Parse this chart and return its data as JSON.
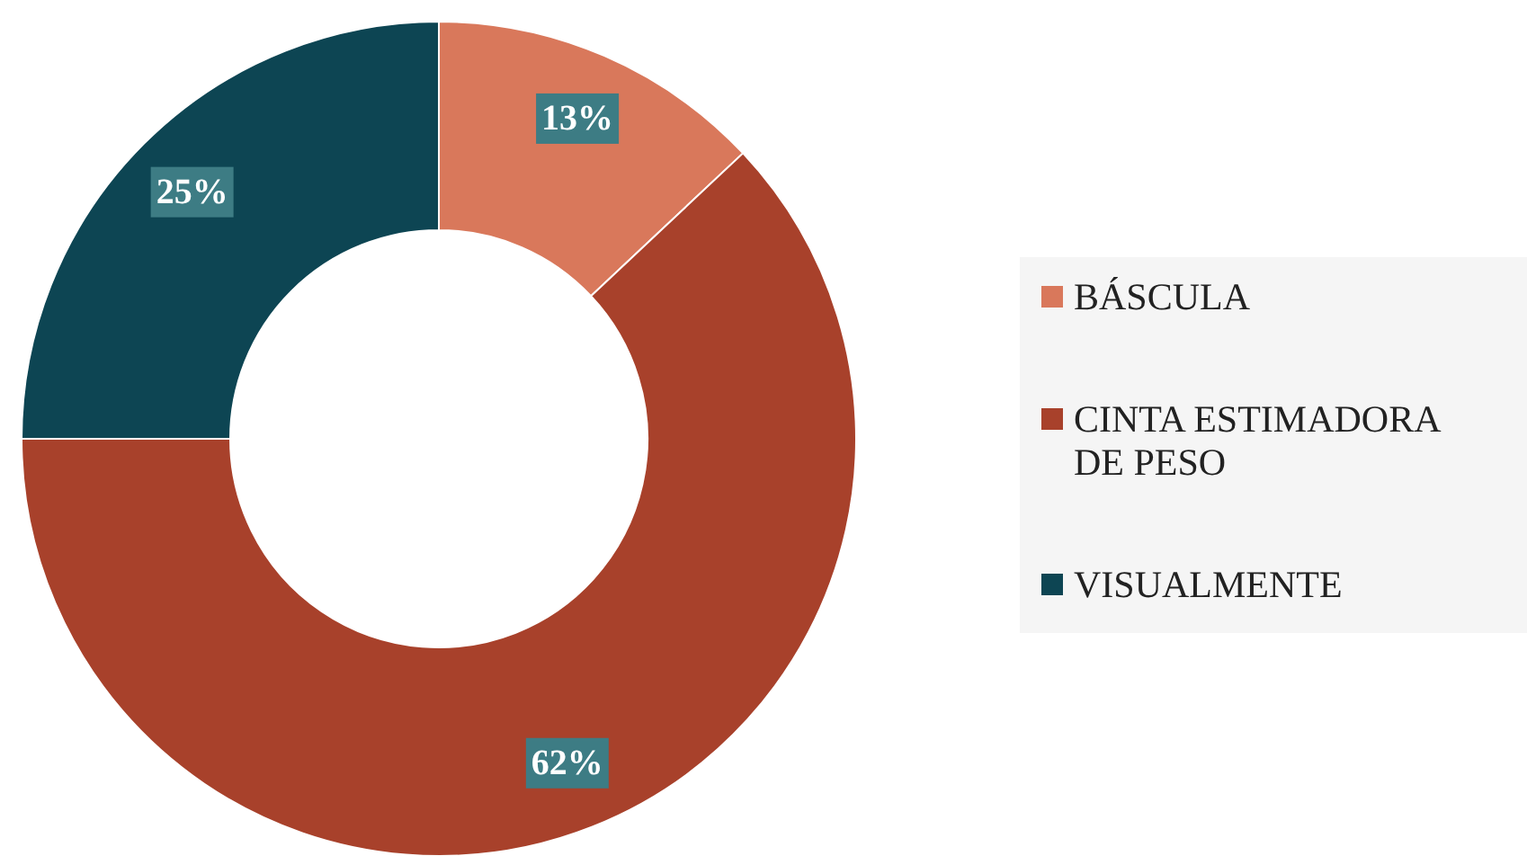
{
  "chart_data": {
    "type": "donut",
    "categories": [
      "BÁSCULA",
      "CINTA ESTIMADORA DE PESO",
      "VISUALMENTE"
    ],
    "values": [
      13,
      62,
      25
    ],
    "colors": [
      "#d9785b",
      "#a8412b",
      "#0d4553"
    ],
    "value_labels": [
      "13%",
      "62%",
      "25%"
    ],
    "legend": "right"
  }
}
